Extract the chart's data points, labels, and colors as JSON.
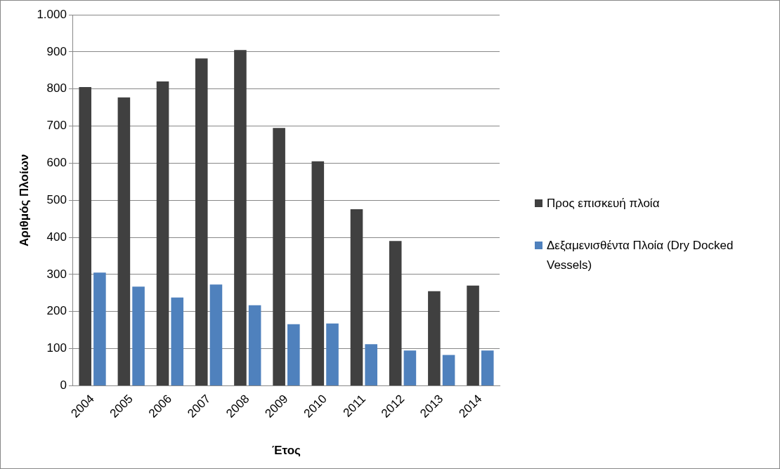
{
  "chart_data": {
    "type": "bar",
    "xlabel": "Έτος",
    "ylabel": "Αριθμός Πλοίων",
    "categories": [
      "2004",
      "2005",
      "2006",
      "2007",
      "2008",
      "2009",
      "2010",
      "2011",
      "2012",
      "2013",
      "2014"
    ],
    "series": [
      {
        "name": "Προς επισκευή πλοία",
        "color": "#404040",
        "values": [
          805,
          777,
          820,
          882,
          905,
          695,
          605,
          476,
          390,
          255,
          270
        ]
      },
      {
        "name": "Δεξαμενισθέντα Πλοία (Dry Docked Vessels)",
        "color": "#4f81bd",
        "values": [
          305,
          267,
          238,
          273,
          217,
          166,
          168,
          112,
          95,
          83,
          95
        ]
      }
    ],
    "ylim": [
      0,
      1000
    ],
    "yticks": [
      0,
      100,
      200,
      300,
      400,
      500,
      600,
      700,
      800,
      900,
      {
        "value": 1000,
        "label": "1.000"
      }
    ],
    "grid": "y",
    "legend": "right"
  }
}
